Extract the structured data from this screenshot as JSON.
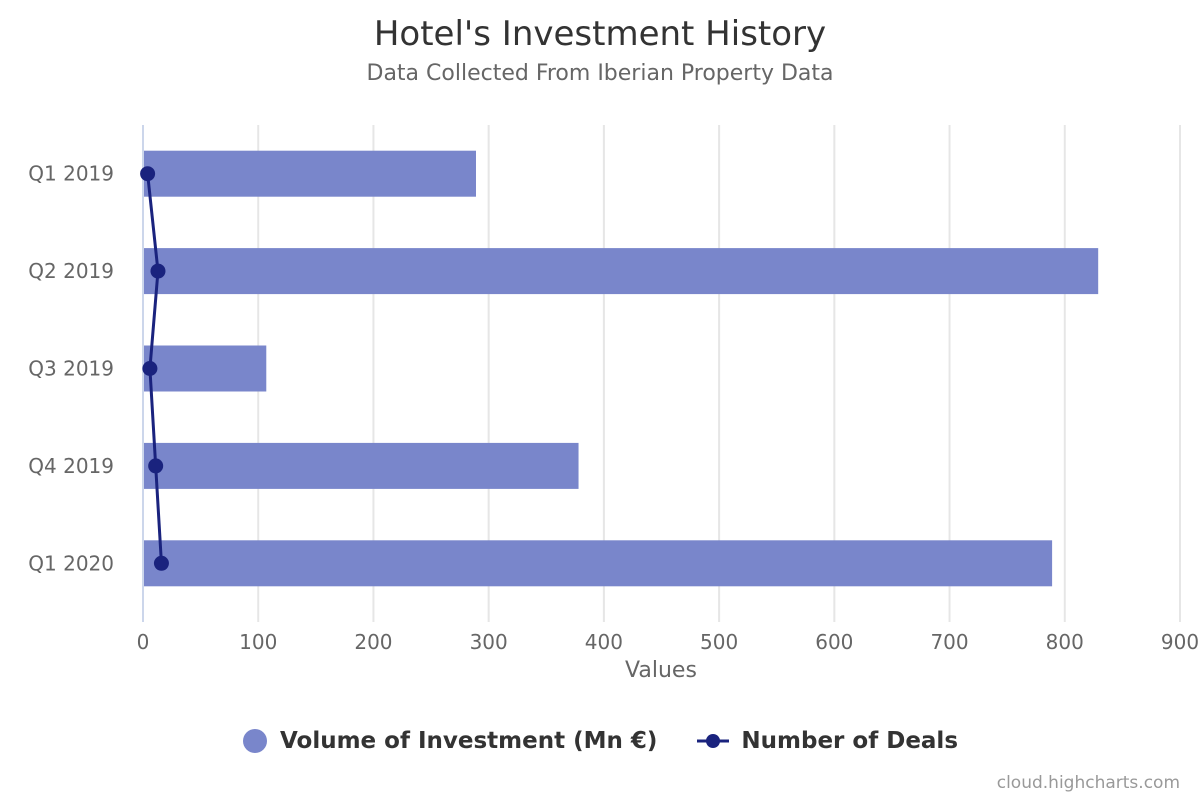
{
  "header": {
    "title": "Hotel's Investment History",
    "subtitle": "Data Collected From Iberian Property Data"
  },
  "legend": {
    "items": [
      {
        "label": "Volume of Investment (Mn €)",
        "color": "#7986cb",
        "symbol": "circle"
      },
      {
        "label": "Number of Deals",
        "color": "#1a237e",
        "symbol": "line-marker"
      }
    ]
  },
  "credits": "cloud.highcharts.com",
  "colors": {
    "bar": "#7986cb",
    "line": "#1a237e",
    "grid": "#e6e6e6",
    "axis_text": "#666666"
  },
  "chart_data": {
    "type": "bar",
    "orientation": "horizontal",
    "title": "Hotel's Investment History",
    "subtitle": "Data Collected From Iberian Property Data",
    "categories": [
      "Q1 2019",
      "Q2 2019",
      "Q3 2019",
      "Q4 2019",
      "Q1 2020"
    ],
    "series": [
      {
        "name": "Volume of Investment (Mn €)",
        "type": "bar",
        "values": [
          289,
          829,
          107,
          378,
          789
        ]
      },
      {
        "name": "Number of Deals",
        "type": "line",
        "values": [
          4,
          13,
          6,
          11,
          16
        ]
      }
    ],
    "xlabel": "",
    "ylabel": "Values",
    "value_axis_ticks": [
      0,
      100,
      200,
      300,
      400,
      500,
      600,
      700,
      800,
      900
    ],
    "ylim": [
      0,
      900
    ],
    "grid": true,
    "legend_position": "bottom-center"
  }
}
